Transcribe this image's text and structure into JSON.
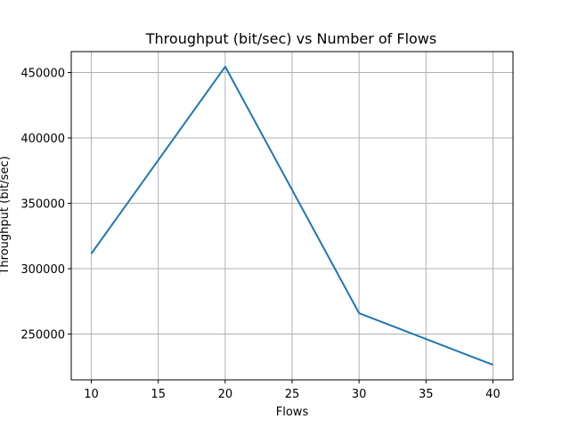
{
  "chart_data": {
    "type": "line",
    "title": "Throughput (bit/sec) vs Number of Flows",
    "xlabel": "Flows",
    "ylabel": "Throughput (bit/sec)",
    "xlim": [
      8.5,
      41.5
    ],
    "ylim": [
      215000,
      466000
    ],
    "xticks": [
      10,
      15,
      20,
      25,
      30,
      35,
      40
    ],
    "yticks": [
      250000,
      300000,
      350000,
      400000,
      450000
    ],
    "grid": true,
    "series": [
      {
        "color": "#1f77b4",
        "x": [
          10,
          20,
          30,
          40
        ],
        "y": [
          311500,
          454500,
          266000,
          226500
        ]
      }
    ]
  }
}
